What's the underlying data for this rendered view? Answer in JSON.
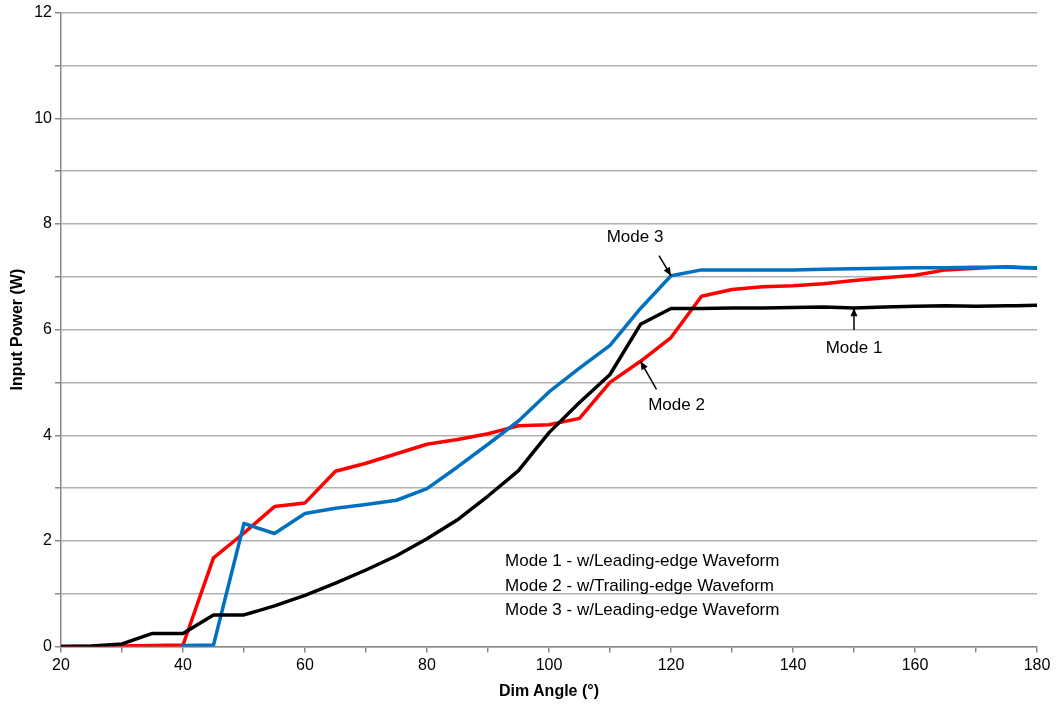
{
  "chart_data": {
    "type": "line",
    "xlabel": "Dim Angle (°)",
    "ylabel": "Input Power (W)",
    "x": [
      20,
      25,
      30,
      35,
      40,
      45,
      50,
      55,
      60,
      65,
      70,
      75,
      80,
      85,
      90,
      95,
      100,
      105,
      110,
      115,
      120,
      125,
      130,
      135,
      140,
      145,
      150,
      155,
      160,
      165,
      170,
      175,
      180
    ],
    "xlim": [
      20,
      180
    ],
    "xticks": [
      20,
      {
        "value": 30,
        "label": null
      },
      40,
      {
        "value": 50,
        "label": null
      },
      60,
      {
        "value": 70,
        "label": null
      },
      80,
      {
        "value": 90,
        "label": null
      },
      100,
      {
        "value": 110,
        "label": null
      },
      120,
      {
        "value": 130,
        "label": null
      },
      140,
      {
        "value": 150,
        "label": null
      },
      160,
      {
        "value": 170,
        "label": null
      },
      180
    ],
    "ylim": [
      0,
      12
    ],
    "yticks": [
      0,
      {
        "value": 1,
        "label": null
      },
      2,
      {
        "value": 3,
        "label": null
      },
      4,
      {
        "value": 5,
        "label": null
      },
      6,
      {
        "value": 7,
        "label": null
      },
      8,
      {
        "value": 9,
        "label": null
      },
      10,
      {
        "value": 11,
        "label": null
      },
      12
    ],
    "grid": "y",
    "legend": false,
    "marker": "none",
    "line_style": "solid",
    "series": [
      {
        "color": "#000000",
        "values": [
          0,
          0.01,
          0.05,
          0.25,
          0.25,
          0.6,
          0.6,
          0.77,
          0.97,
          1.2,
          1.45,
          1.72,
          2.04,
          2.4,
          2.85,
          3.33,
          4.05,
          4.62,
          5.15,
          6.1,
          6.4,
          6.4,
          6.41,
          6.41,
          6.42,
          6.43,
          6.41,
          6.43,
          6.44,
          6.45,
          6.44,
          6.45,
          6.46
        ]
      },
      {
        "color": "#0070c0",
        "values": [
          null,
          null,
          null,
          null,
          0.02,
          0.03,
          2.33,
          2.14,
          2.52,
          2.62,
          2.69,
          2.77,
          2.99,
          3.4,
          3.83,
          4.27,
          4.82,
          5.27,
          5.7,
          6.4,
          7.02,
          7.13,
          7.13,
          7.13,
          7.13,
          7.14,
          7.15,
          7.16,
          7.17,
          7.17,
          7.18,
          7.18,
          7.17
        ]
      },
      {
        "color": "#ff0000",
        "values": [
          0,
          0,
          0.01,
          0.02,
          0.03,
          1.68,
          2.15,
          2.65,
          2.72,
          3.32,
          3.47,
          3.65,
          3.83,
          3.92,
          4.03,
          4.18,
          4.2,
          4.32,
          5.0,
          5.4,
          5.85,
          6.63,
          6.76,
          6.81,
          6.83,
          6.87,
          6.93,
          6.98,
          7.03,
          7.13,
          7.16,
          7.19,
          7.16
        ]
      }
    ],
    "annotations": [
      {
        "text": "Mode 1",
        "x": 150,
        "y": 6.41
      },
      {
        "text": "Mode 2",
        "x": 115,
        "y": 5.4
      },
      {
        "text": "Mode 3",
        "x": 120,
        "y": 7.02
      },
      "Mode 1 - w/Leading-edge Waveform",
      "Mode 2 - w/Trailing-edge Waveform",
      "Mode 3 - w/Leading-edge Waveform"
    ]
  }
}
